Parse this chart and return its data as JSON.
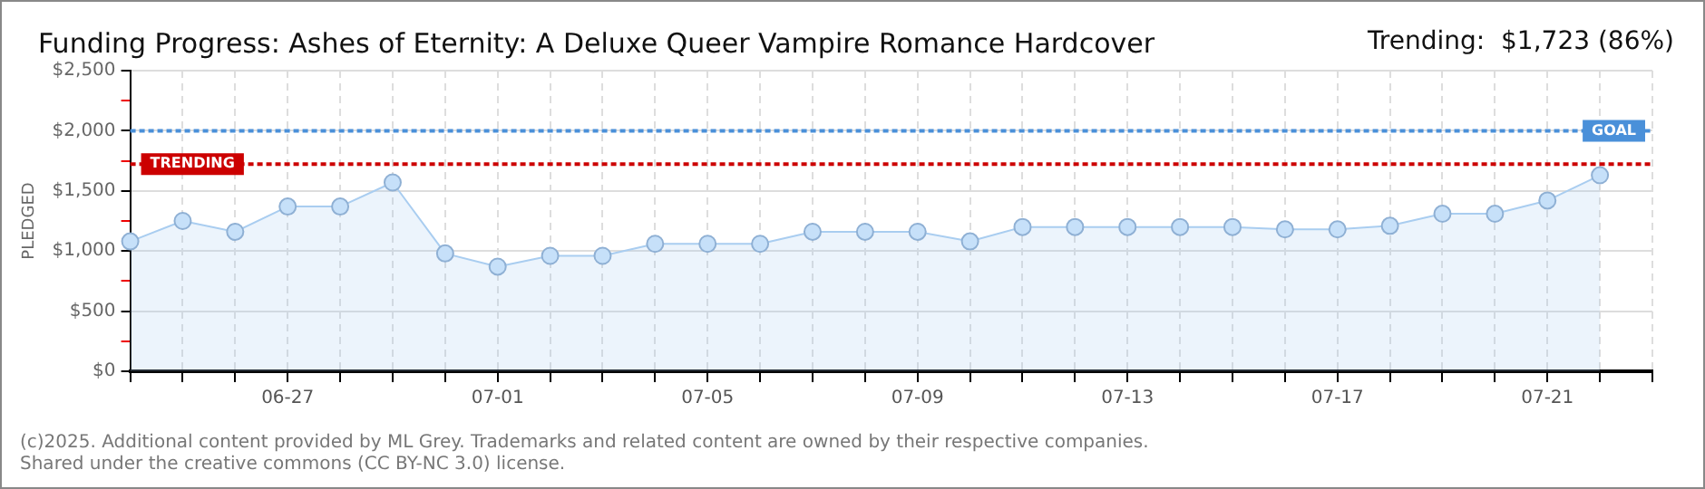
{
  "chart_data": {
    "type": "area",
    "title": "Funding Progress: Ashes of Eternity: A Deluxe Queer Vampire Romance Hardcover",
    "subtitle": "Trending:  $1,723 (86%)",
    "ylabel": "PLEDGED",
    "categories": [
      null,
      null,
      null,
      "06-27",
      null,
      null,
      null,
      "07-01",
      null,
      null,
      null,
      "07-05",
      null,
      null,
      null,
      "07-09",
      null,
      null,
      null,
      "07-13",
      null,
      null,
      null,
      "07-17",
      null,
      null,
      null,
      "07-21",
      null,
      null
    ],
    "series": [
      {
        "color": "#a9cdf0",
        "values": [
          1080,
          1250,
          1160,
          1370,
          1370,
          1570,
          980,
          870,
          960,
          960,
          1060,
          1060,
          1060,
          1160,
          1160,
          1160,
          1080,
          1200,
          1200,
          1200,
          1200,
          1200,
          1180,
          1180,
          1210,
          1310,
          1310,
          1420,
          1630,
          null
        ]
      }
    ],
    "ylim": [
      0,
      2500
    ],
    "yticks": [
      {
        "value": 0,
        "label": "$0"
      },
      {
        "value": 250,
        "label": null
      },
      {
        "value": 500,
        "label": "$500"
      },
      {
        "value": 750,
        "label": null
      },
      {
        "value": 1000,
        "label": "$1,000"
      },
      {
        "value": 1250,
        "label": null
      },
      {
        "value": 1500,
        "label": "$1,500"
      },
      {
        "value": 1750,
        "label": null
      },
      {
        "value": 2000,
        "label": "$2,000"
      },
      {
        "value": 2250,
        "label": null
      },
      {
        "value": 2500,
        "label": "$2,500"
      }
    ],
    "ref_lines": [
      {
        "axis": "y",
        "value": 2000,
        "label": "GOAL",
        "color": "#4a90d9",
        "line_style": "dotted"
      },
      {
        "axis": "y",
        "value": 1723,
        "label": "TRENDING",
        "color": "#cc0000",
        "line_style": "dotted"
      }
    ],
    "grid": true,
    "marker": "circle",
    "legend": false,
    "annotations": [
      "(c)2025. Additional content provided by ML Grey. Trademarks and related content are owned by their respective companies.",
      "Shared under the creative commons (CC BY-NC 3.0) license."
    ]
  }
}
